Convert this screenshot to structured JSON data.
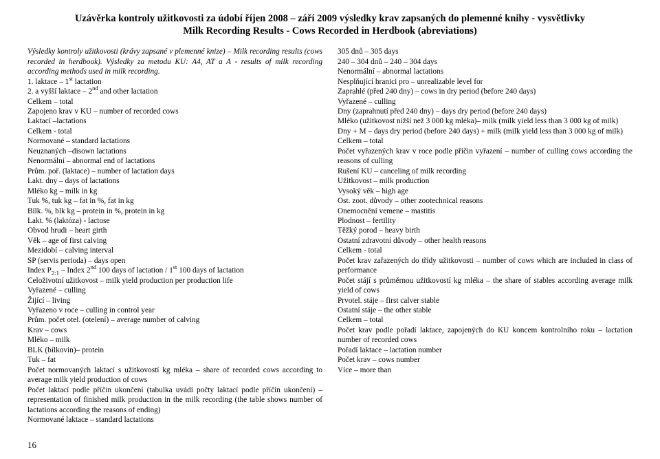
{
  "title_line1": "Uzávěrka kontroly užitkovosti za údobí říjen 2008 – září 2009 výsledky krav zapsaných do plemenné knihy - vysvětlivky",
  "title_line2": "Milk Recording Results - Cows Recorded in Herdbook (abreviations)",
  "left": {
    "intro1": "Výsledky kontroly užitkovosti (krávy zapsané v plemenné knize) – Milk recording results (cows recorded in herdbook). Výsledky za metodu KU: A4, AT a A - results of milk recording according methods used in milk recording.",
    "l01a": "1. laktace – 1",
    "l01b": " lactation",
    "l02a": "2. a vyšší laktace – 2",
    "l02b": " and other lactation",
    "l03": "Celkem – total",
    "l04": "Zapojeno krav v KU – number of recorded cows",
    "l05": "Laktací –lactations",
    "l06": "Celkem - total",
    "l07": "Normované – standard lactations",
    "l08": "Neuznaných –disown lactations",
    "l09": "Nenormální – abnormal end of lactations",
    "l10": "Prům. poř. (laktace) – number of lactation days",
    "l11": "Lakt. dny – days of lactations",
    "l12": "Mléko kg – milk in kg",
    "l13": "Tuk %, tuk kg – fat in %, fat in kg",
    "l14": "Bílk. %, blk kg – protein in %, protein in kg",
    "l15": "Lakt. % (laktóza) - lactose",
    "l16": "Obvod hrudi – heart girth",
    "l17": "Věk – age of first calving",
    "l18": "Mezidobí – calving interval",
    "l19": "SP (servis perioda) – days open",
    "l20p1": "Index P",
    "l20sub": "2:1",
    "l20p2": " – Index 2",
    "l20nd": "nd",
    "l20p3": " 100 days of lactation / 1",
    "l20st": "st",
    "l20p4": " 100 days of lactation",
    "l21": "Celoživotní užitkovost – milk yield production per production life",
    "l22": "Vyřazené – culling",
    "l23": "Žijící – living",
    "l24": "Vyřazeno v roce – culling in control year",
    "l25": "Prům. počet otel. (otelení) – average number of calving",
    "l26": "Krav – cows",
    "l27": "Mléko – milk",
    "l28": "BLK (bílkovin)– protein",
    "l29": "Tuk – fat",
    "l30": "Počet normovaných laktací s užitkovostí kg mléka – share of recorded cows according to average milk yield production of cows",
    "l31": "Počet laktací podle příčin ukončení (tabulka uvádí počty laktací podle příčin ukončení) – representation of finished milk production in the milk recording (the table shows number of lactations according the reasons of ending)",
    "l32": "Normované laktace – standard lactations"
  },
  "right": {
    "r01": "305 dnů – 305 days",
    "r02": "240 – 304 dnů – 240 – 304 days",
    "r03": "Nenormální – abnormal lactations",
    "r04": "Nesplňující hranici pro – unrealizable level for",
    "r05": "Zaprahlé (před 240 dny) – cows in dry period (before 240 days)",
    "r06": "Vyřazené – culling",
    "r07": "Dny (zaprahnutí před 240 dny) – days dry period (before 240 days)",
    "r08": "Mléko (užitkovost nižší než 3 000 kg mléka)– milk (milk yield less than 3 000 kg of milk)",
    "r09": "Dny + M – days dry period (before 240 days) + milk (milk yield less than 3 000 kg of milk)",
    "r10": "Celkem – total",
    "r11": "Počet vyřazených krav v roce podle příčin vyřazení – number of culling cows according the reasons of culling",
    "r12": "Rušení KU – canceling of milk recording",
    "r13": "Užitkovost – milk production",
    "r14": "Vysoký věk – high age",
    "r15": "Ost. zoot. důvody – other zootechnical reasons",
    "r16": "Onemocnění vemene – mastitis",
    "r17": "Plodnost – fertility",
    "r18": "Těžký porod – heavy birth",
    "r19": "Ostatní zdravotní důvody – other health reasons",
    "r20": "Celkem - total",
    "r21": "Počet krav zařazených do třídy užitkovosti – number of cows which are included in class of performance",
    "r22": "Počet stájí s průměrnou užitkovostí kg mléka – the share of stables according average milk yield of cows",
    "r23": "Prvotel. stáje – first calver stable",
    "r24": "Ostatní stáje – the other stable",
    "r25": "Celkem – total",
    "r26": "Počet krav podle pořadí laktace, zapojených do KU koncem kontrolního roku – lactation number of recorded cows",
    "r27": "Pořadí laktace – lactation number",
    "r28": "Počet krav – cows number",
    "r29": "Více – more than"
  },
  "page_number": "16"
}
